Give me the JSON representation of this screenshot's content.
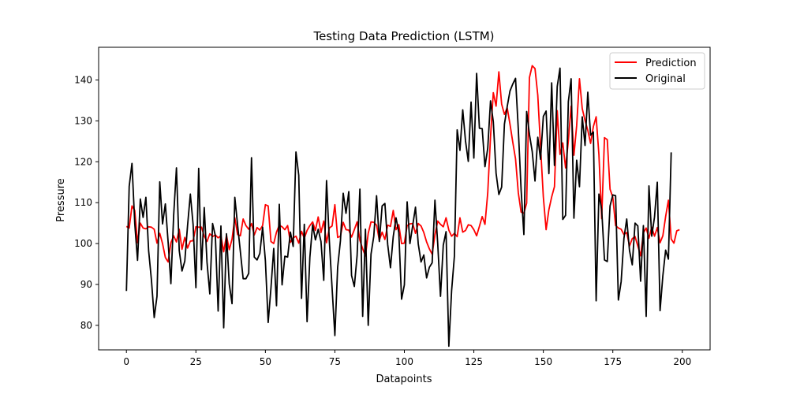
{
  "chart_data": {
    "type": "line",
    "title": "Testing Data Prediction (LSTM)",
    "xlabel": "Datapoints",
    "ylabel": "Pressure",
    "xlim": [
      -10,
      210
    ],
    "ylim": [
      74,
      148
    ],
    "xticks": [
      0,
      25,
      50,
      75,
      100,
      125,
      150,
      175,
      200
    ],
    "yticks": [
      80,
      90,
      100,
      110,
      120,
      130,
      140
    ],
    "grid": false,
    "legend_position": "top-right",
    "series": [
      {
        "name": "Prediction",
        "color": "#ff0000",
        "values": [
          104.2,
          103.8,
          109.2,
          108.1,
          100.2,
          105.0,
          103.8,
          103.6,
          104.1,
          104.0,
          103.5,
          100.1,
          102.5,
          100.0,
          96.6,
          95.5,
          100.2,
          101.9,
          100.4,
          103.5,
          98.6,
          101.5,
          98.9,
          100.6,
          100.7,
          104.1,
          104.0,
          104.0,
          101.8,
          100.5,
          102.4,
          101.7,
          102.1,
          101.4,
          101.9,
          98.0,
          102.0,
          98.5,
          101.1,
          106.3,
          102.2,
          101.9,
          106.0,
          104.4,
          103.5,
          104.9,
          102.1,
          103.9,
          103.3,
          104.4,
          109.5,
          109.2,
          100.5,
          100.0,
          102.8,
          104.5,
          104.1,
          103.4,
          104.4,
          100.3,
          101.4,
          101.8,
          100.1,
          103.0,
          101.3,
          103.2,
          104.4,
          105.3,
          103.2,
          106.5,
          102.7,
          105.5,
          100.2,
          103.8,
          104.3,
          109.5,
          101.5,
          101.8,
          105.2,
          103.4,
          103.3,
          101.6,
          103.4,
          105.3,
          100.8,
          98.7,
          97.0,
          102.5,
          105.3,
          105.2,
          104.5,
          100.8,
          102.8,
          101.0,
          104.5,
          104.2,
          108.1,
          103.4,
          104.6,
          100.0,
          100.1,
          104.4,
          104.8,
          104.9,
          102.5,
          104.9,
          104.3,
          102.7,
          100.4,
          98.7,
          97.4,
          102.1,
          105.5,
          104.7,
          104.1,
          106.3,
          103.3,
          101.8,
          102.5,
          101.7,
          106.3,
          102.8,
          103.2,
          104.6,
          104.4,
          103.4,
          101.9,
          104.2,
          106.6,
          104.7,
          112.4,
          126.1,
          136.9,
          133.6,
          142.0,
          134.1,
          131.6,
          133.2,
          129.2,
          124.8,
          120.7,
          112.4,
          107.7,
          107.4,
          109.9,
          140.6,
          143.5,
          142.8,
          136.3,
          123.7,
          111.4,
          103.4,
          108.3,
          111.4,
          113.9,
          132.5,
          121.8,
          124.6,
          118.5,
          125.1,
          133.6,
          121.6,
          128.9,
          140.3,
          133.0,
          130.1,
          127.7,
          124.5,
          128.6,
          131.0,
          121.7,
          106.1,
          125.9,
          125.4,
          113.3,
          111.3,
          104.4,
          103.8,
          103.5,
          102.2,
          102.7,
          99.4,
          101.2,
          101.7,
          99.4,
          97.0,
          102.6,
          103.8,
          101.3,
          104.0,
          101.8,
          103.9,
          100.2,
          101.9,
          106.6,
          110.6,
          101.1,
          100.1,
          103.1,
          103.4
        ]
      },
      {
        "name": "Original",
        "color": "#000000",
        "values": [
          88.4,
          114.0,
          119.6,
          104.9,
          95.9,
          110.9,
          106.4,
          111.3,
          98.2,
          91.1,
          81.9,
          87.1,
          115.1,
          104.8,
          109.7,
          100.4,
          90.2,
          106.9,
          118.5,
          98.3,
          93.3,
          95.7,
          104.4,
          112.1,
          104.6,
          89.2,
          118.4,
          93.6,
          108.8,
          95.4,
          87.7,
          104.9,
          101.9,
          83.5,
          104.3,
          79.4,
          102.4,
          90.1,
          85.3,
          111.3,
          104.5,
          98.0,
          91.4,
          91.4,
          92.7,
          121.0,
          96.7,
          96.0,
          97.6,
          104.0,
          95.8,
          80.7,
          89.1,
          98.8,
          84.8,
          109.6,
          89.9,
          96.9,
          96.7,
          102.8,
          99.3,
          122.4,
          116.7,
          86.6,
          104.7,
          80.9,
          96.6,
          104.6,
          100.9,
          103.5,
          100.5,
          91.0,
          115.4,
          100.7,
          89.1,
          77.5,
          94.2,
          100.7,
          112.3,
          107.4,
          112.7,
          92.2,
          89.5,
          97.1,
          113.3,
          82.2,
          103.5,
          80.0,
          97.4,
          101.8,
          111.7,
          100.5,
          109.2,
          109.8,
          99.8,
          94.1,
          101.7,
          106.3,
          102.7,
          86.4,
          89.9,
          110.2,
          100.0,
          104.4,
          108.9,
          99.9,
          95.5,
          97.2,
          91.6,
          94.2,
          95.3,
          110.6,
          100.0,
          87.1,
          99.6,
          102.9,
          74.9,
          88.5,
          96.9,
          127.8,
          122.8,
          132.7,
          125.1,
          120.1,
          134.6,
          120.9,
          141.6,
          128.2,
          128.1,
          118.8,
          123.3,
          134.9,
          129.8,
          117.2,
          112.0,
          113.8,
          129.2,
          133.5,
          137.3,
          139.0,
          140.4,
          127.9,
          113.2,
          102.2,
          132.3,
          126.7,
          122.5,
          115.3,
          126.0,
          120.6,
          131.1,
          132.4,
          117.1,
          139.3,
          119.1,
          138.4,
          142.9,
          105.9,
          106.9,
          134.7,
          140.3,
          106.2,
          120.4,
          113.9,
          131.0,
          124.0,
          137.0,
          126.5,
          127.3,
          86.0,
          112.1,
          108.3,
          96.0,
          95.6,
          109.2,
          111.9,
          111.7,
          86.2,
          90.7,
          101.3,
          106.0,
          98.3,
          94.8,
          105.0,
          104.3,
          90.8,
          104.4,
          82.2,
          114.1,
          101.8,
          106.5,
          115.0,
          83.6,
          92.1,
          98.4,
          96.2,
          122.3
        ]
      }
    ]
  }
}
